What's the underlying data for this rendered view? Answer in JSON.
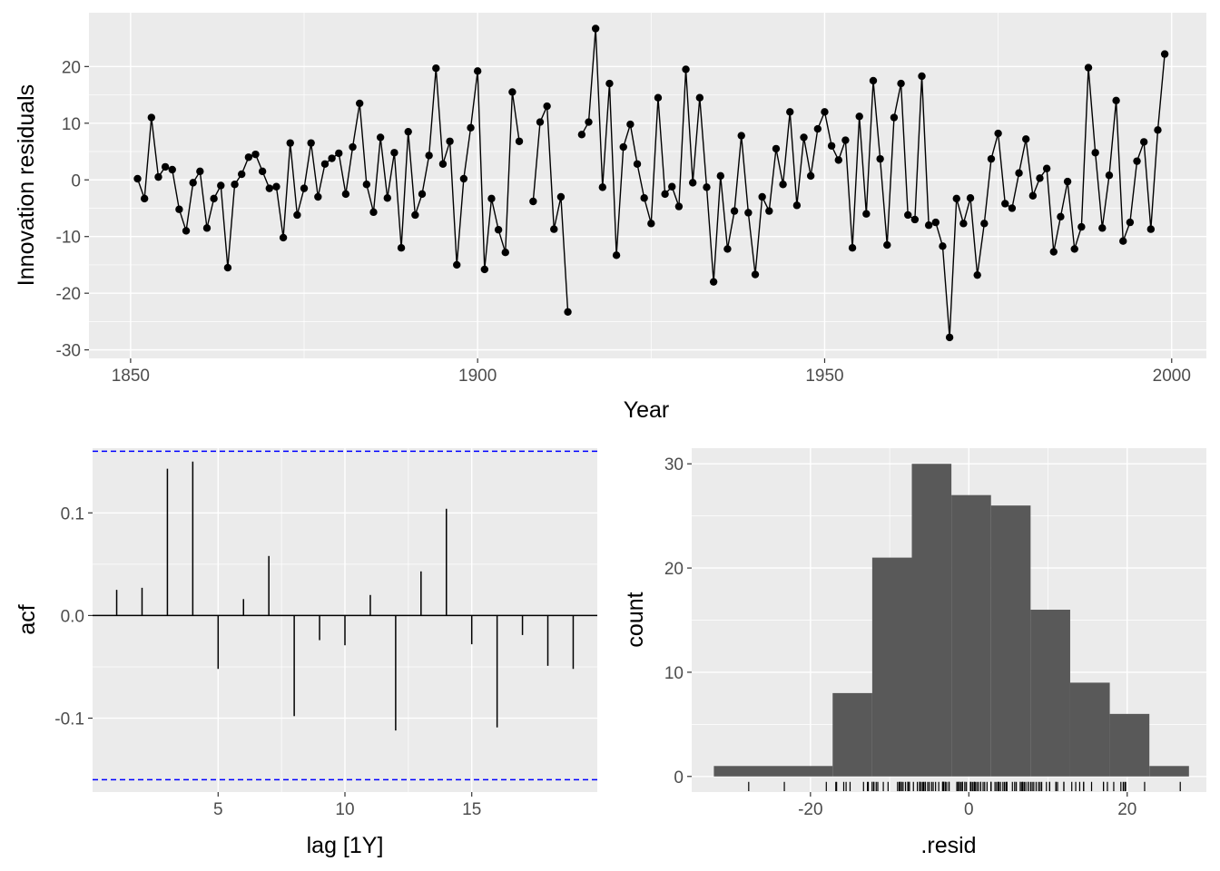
{
  "chart_data": [
    {
      "type": "line",
      "id": "innovation",
      "xlabel": "Year",
      "ylabel": "Innovation residuals",
      "xlim": [
        1844,
        2005
      ],
      "ylim": [
        -31.5,
        29.5
      ],
      "xticks": [
        1850,
        1900,
        1950,
        2000
      ],
      "yticks": [
        -30,
        -20,
        -10,
        0,
        10,
        20
      ],
      "xtick_labels": [
        "1850",
        "1900",
        "1950",
        "2000"
      ],
      "ytick_labels": [
        "-30",
        "-20",
        "-10",
        "0",
        "10",
        "20"
      ],
      "x_start": 1851,
      "values": [
        0.2,
        -3.3,
        11,
        0.5,
        2.3,
        1.8,
        -5.2,
        -9,
        -0.5,
        1.5,
        -8.5,
        -3.3,
        -1,
        -15.5,
        -0.8,
        1,
        4,
        4.5,
        1.5,
        -1.5,
        -1.2,
        -10.2,
        6.5,
        -6.2,
        -1.5,
        6.5,
        -3,
        2.8,
        3.8,
        4.7,
        -2.5,
        5.8,
        13.5,
        -0.8,
        -5.7,
        7.5,
        -3.2,
        4.8,
        -12,
        8.5,
        -6.2,
        -2.5,
        4.3,
        19.7,
        2.8,
        6.8,
        -15,
        0.2,
        9.2,
        19.2,
        -15.8,
        -3.3,
        -8.8,
        -12.8,
        15.5,
        6.8,
        null,
        -3.8,
        10.2,
        13,
        -8.7,
        -3,
        -23.3,
        null,
        8,
        10.2,
        26.7,
        -1.3,
        17,
        -13.3,
        5.8,
        9.8,
        2.8,
        -3.2,
        -7.7,
        14.5,
        -2.5,
        -1.2,
        -4.7,
        19.5,
        -0.5,
        14.5,
        -1.3,
        -18,
        0.7,
        -12.2,
        -5.5,
        7.8,
        -5.8,
        -16.7,
        -3,
        -5.5,
        5.5,
        -0.8,
        12,
        -4.5,
        7.5,
        0.7,
        9,
        12,
        6,
        3.5,
        7,
        -12,
        11.2,
        -6,
        17.5,
        3.7,
        -11.5,
        11,
        17,
        -6.2,
        -7,
        18.3,
        -8,
        -7.5,
        -11.7,
        -27.8,
        -3.3,
        -7.7,
        -3.2,
        -16.8,
        -7.7,
        3.7,
        8.2,
        -4.2,
        -5,
        1.2,
        7.2,
        -2.8,
        0.3,
        2,
        -12.7,
        -6.5,
        -0.3,
        -12.2,
        -8.3,
        19.8,
        4.8,
        -8.5,
        0.8,
        14,
        -10.8,
        -7.5,
        3.3,
        6.7,
        -8.7,
        8.8,
        22.2
      ]
    },
    {
      "type": "bar",
      "id": "acf",
      "xlabel": "lag [1Y]",
      "ylabel": "acf",
      "xlim": [
        0.05,
        19.95
      ],
      "ylim": [
        -0.172,
        0.163
      ],
      "xticks": [
        5,
        10,
        15
      ],
      "yticks": [
        -0.1,
        0.0,
        0.1
      ],
      "xtick_labels": [
        "5",
        "10",
        "15"
      ],
      "ytick_labels": [
        "-0.1",
        "0.0",
        "0.1"
      ],
      "categories": [
        1,
        2,
        3,
        4,
        5,
        6,
        7,
        8,
        9,
        10,
        11,
        12,
        13,
        14,
        15,
        16,
        17,
        18,
        19
      ],
      "values": [
        0.025,
        0.027,
        0.143,
        0.15,
        -0.052,
        0.016,
        0.058,
        -0.098,
        -0.024,
        -0.029,
        0.02,
        -0.112,
        0.043,
        0.104,
        -0.028,
        -0.109,
        -0.019,
        -0.049,
        -0.052
      ],
      "confidence_bounds": [
        0.16,
        -0.16
      ],
      "confidence_line_color": "#0000ff"
    },
    {
      "type": "bar",
      "id": "histogram",
      "xlabel": ".resid",
      "ylabel": "count",
      "xlim": [
        -35,
        30
      ],
      "ylim": [
        -1.5,
        31.5
      ],
      "xticks": [
        -20,
        0,
        20
      ],
      "yticks": [
        0,
        10,
        20,
        30
      ],
      "xtick_labels": [
        "-20",
        "0",
        "20"
      ],
      "ytick_labels": [
        "0",
        "10",
        "20",
        "30"
      ],
      "bin_edges": [
        -32.2,
        -17.2,
        -12.2,
        -7.2,
        -2.2,
        2.8,
        7.8,
        12.8,
        17.8,
        22.8,
        27.8
      ],
      "values": [
        1,
        8,
        21,
        30,
        27,
        26,
        16,
        9,
        6,
        1
      ],
      "bar_color": "#595959"
    }
  ],
  "colors": {
    "panel_background": "#ebebeb",
    "grid": "#ffffff",
    "series": "#000000"
  }
}
